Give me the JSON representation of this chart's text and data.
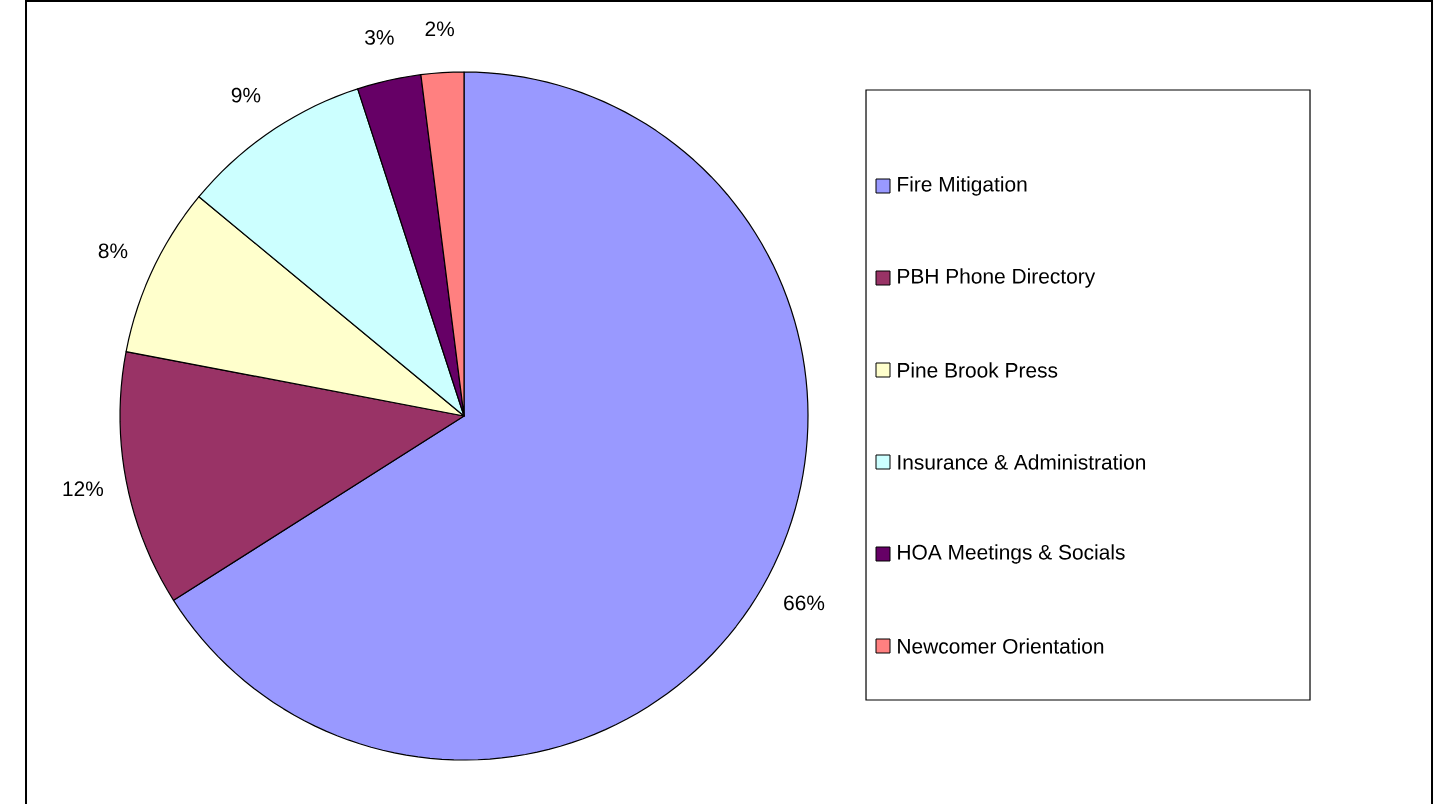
{
  "chart_data": {
    "type": "pie",
    "categories": [
      "Fire Mitigation",
      "PBH Phone Directory",
      "Pine Brook Press",
      "Insurance & Administration",
      "HOA Meetings & Socials",
      "Newcomer Orientation"
    ],
    "values": [
      66,
      12,
      8,
      9,
      3,
      2
    ],
    "value_labels": [
      "66%",
      "12%",
      "8%",
      "9%",
      "3%",
      "2%"
    ],
    "colors": [
      "#9999ff",
      "#993366",
      "#ffffcc",
      "#ccffff",
      "#660066",
      "#ff8080"
    ],
    "legend": "right"
  }
}
